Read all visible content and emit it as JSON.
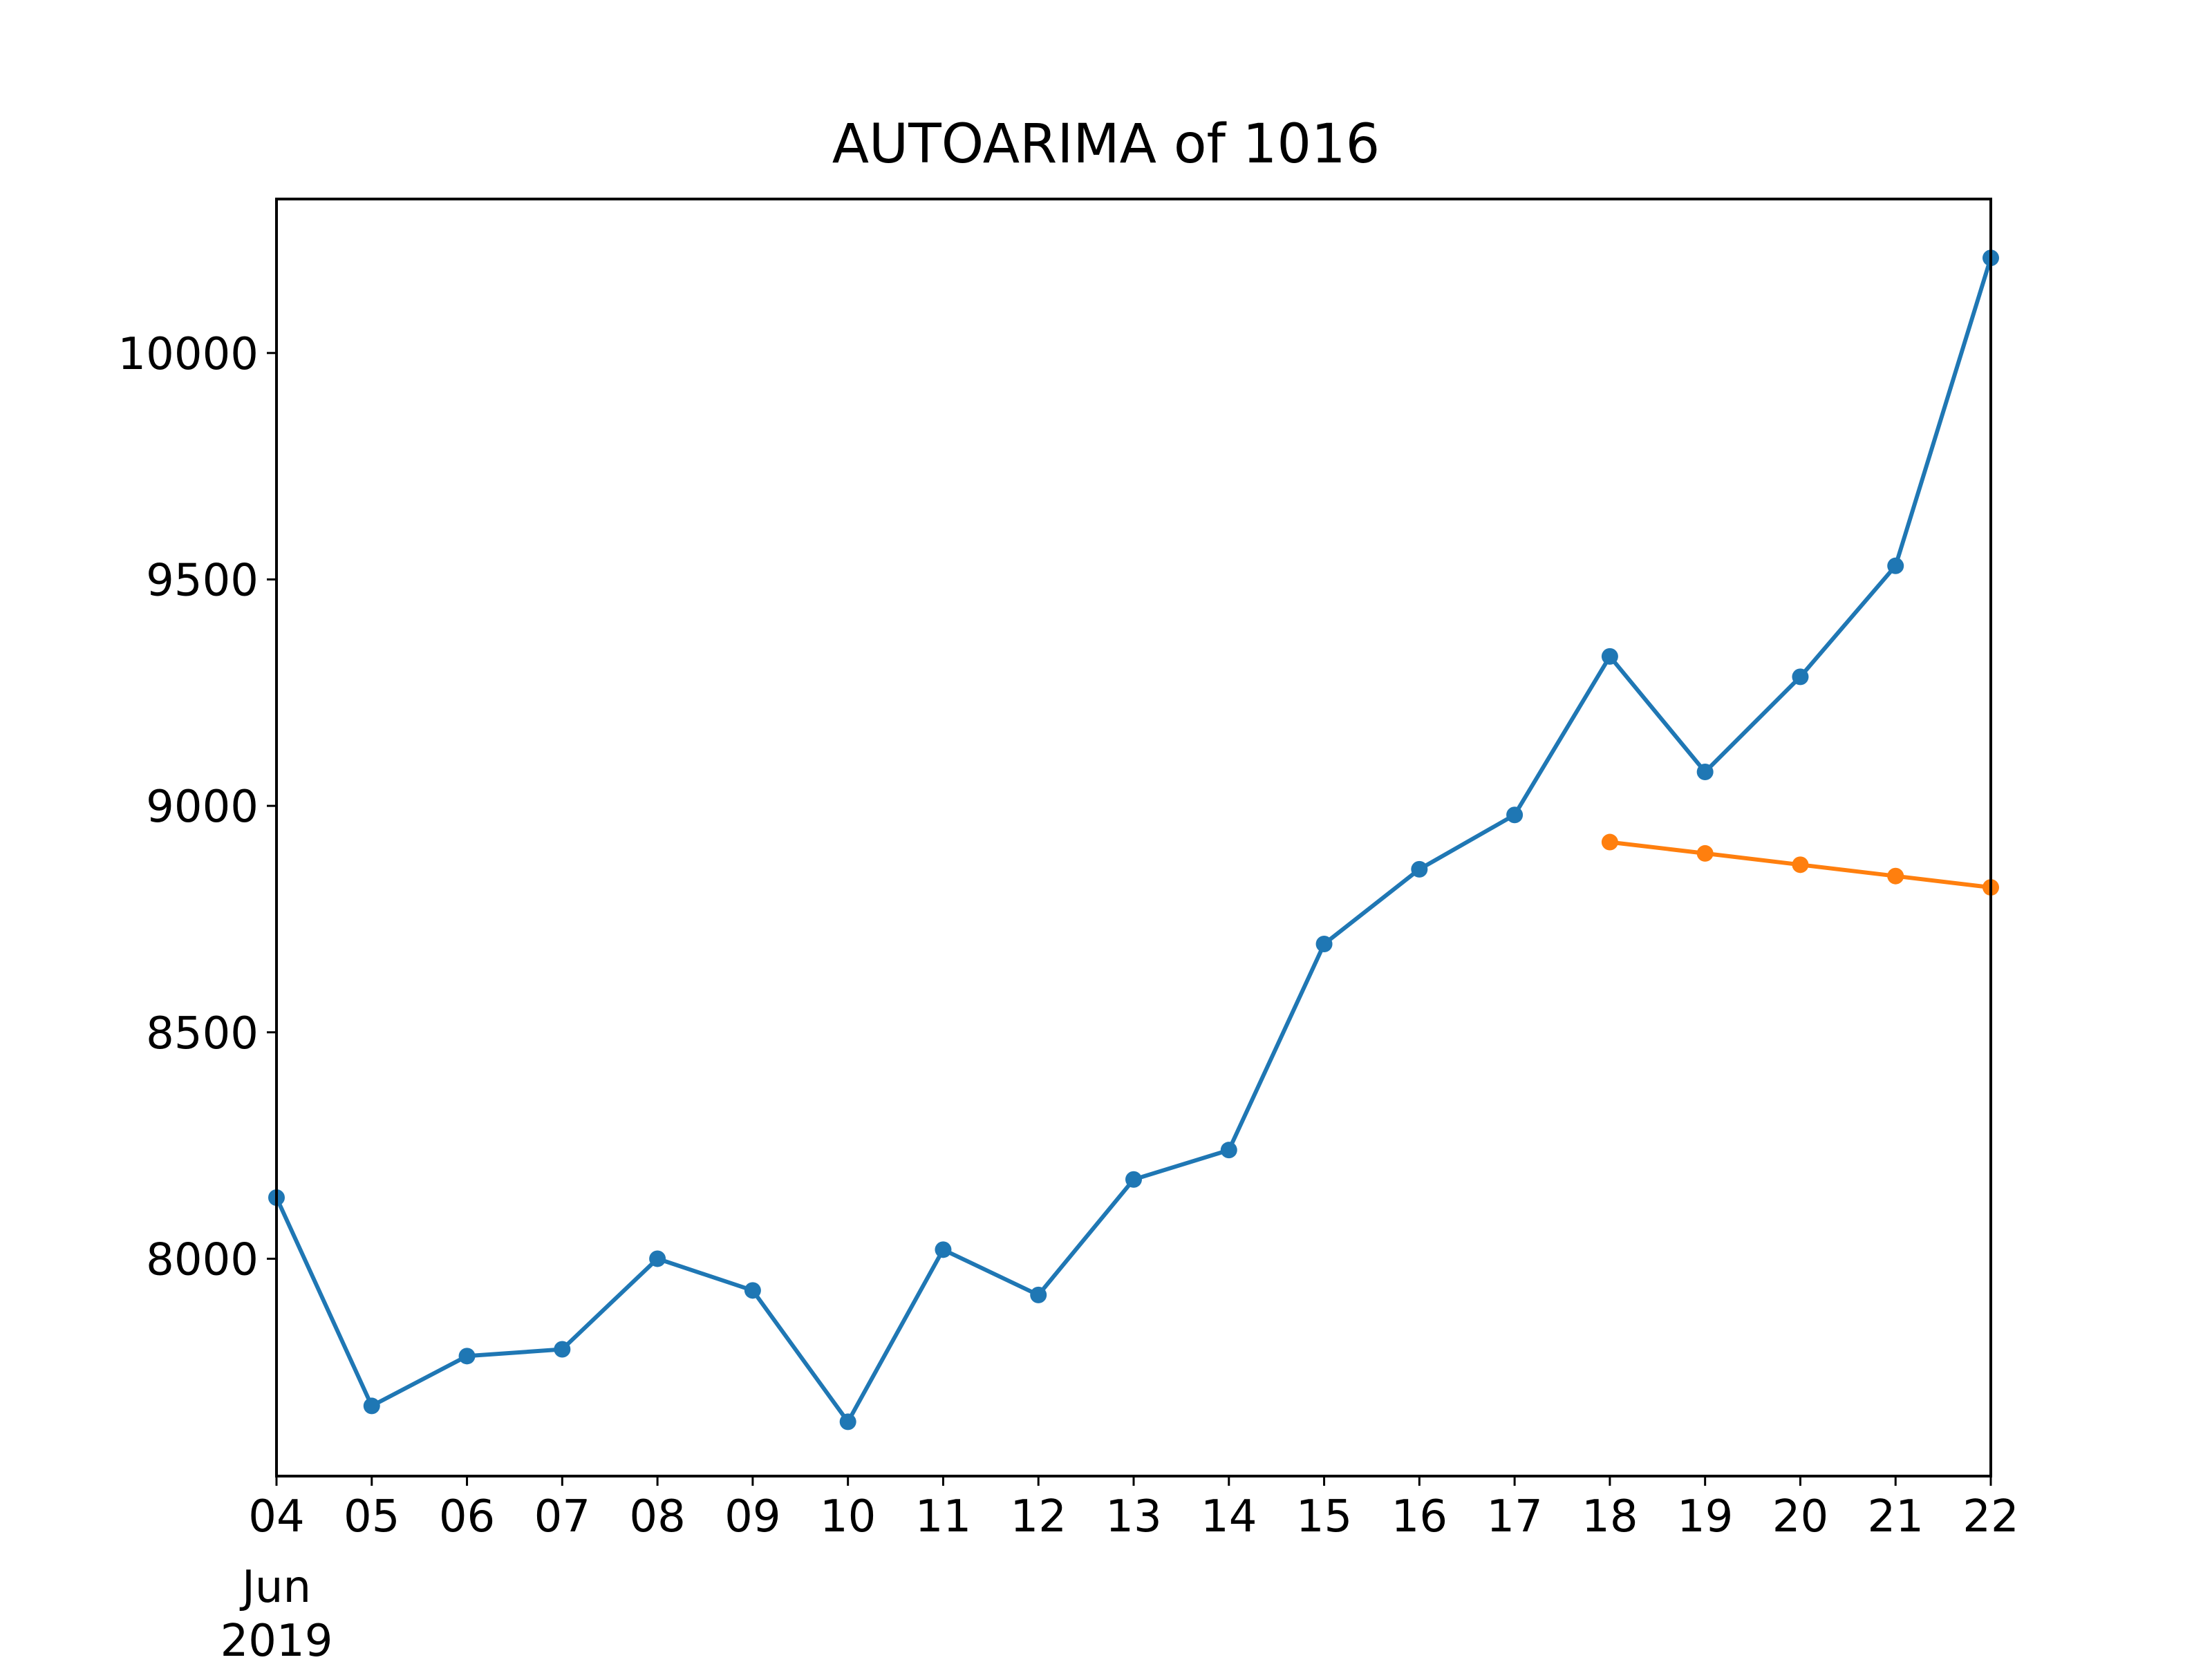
{
  "chart_data": {
    "type": "line",
    "title": "AUTOARIMA of 1016",
    "xlabel": "",
    "ylabel": "",
    "x_tick_labels": [
      "04",
      "05",
      "06",
      "07",
      "08",
      "09",
      "10",
      "11",
      "12",
      "13",
      "14",
      "15",
      "16",
      "17",
      "18",
      "19",
      "20",
      "21",
      "22"
    ],
    "x_secondary_labels": [
      "Jun",
      "2019"
    ],
    "x_range": [
      "2019-06-04",
      "2019-06-22"
    ],
    "ylim": [
      7520,
      10340
    ],
    "y_ticks": [
      8000,
      8500,
      9000,
      9500,
      10000
    ],
    "y_tick_labels": [
      "8000",
      "8500",
      "9000",
      "9500",
      "10000"
    ],
    "grid": false,
    "series": [
      {
        "color": "#1f77b4",
        "x": [
          "2019-06-04",
          "2019-06-05",
          "2019-06-06",
          "2019-06-07",
          "2019-06-08",
          "2019-06-09",
          "2019-06-10",
          "2019-06-11",
          "2019-06-12",
          "2019-06-13",
          "2019-06-14",
          "2019-06-15",
          "2019-06-16",
          "2019-06-17",
          "2019-06-18",
          "2019-06-19",
          "2019-06-20",
          "2019-06-21",
          "2019-06-22"
        ],
        "values": [
          8135,
          7675,
          7785,
          7800,
          8000,
          7930,
          7640,
          8020,
          7920,
          8175,
          8240,
          8695,
          8860,
          8980,
          9330,
          9075,
          9285,
          9530,
          10210
        ]
      },
      {
        "color": "#ff7f0e",
        "x": [
          "2019-06-18",
          "2019-06-19",
          "2019-06-20",
          "2019-06-21",
          "2019-06-22"
        ],
        "values": [
          8920,
          8895,
          8870,
          8845,
          8820
        ]
      }
    ]
  }
}
